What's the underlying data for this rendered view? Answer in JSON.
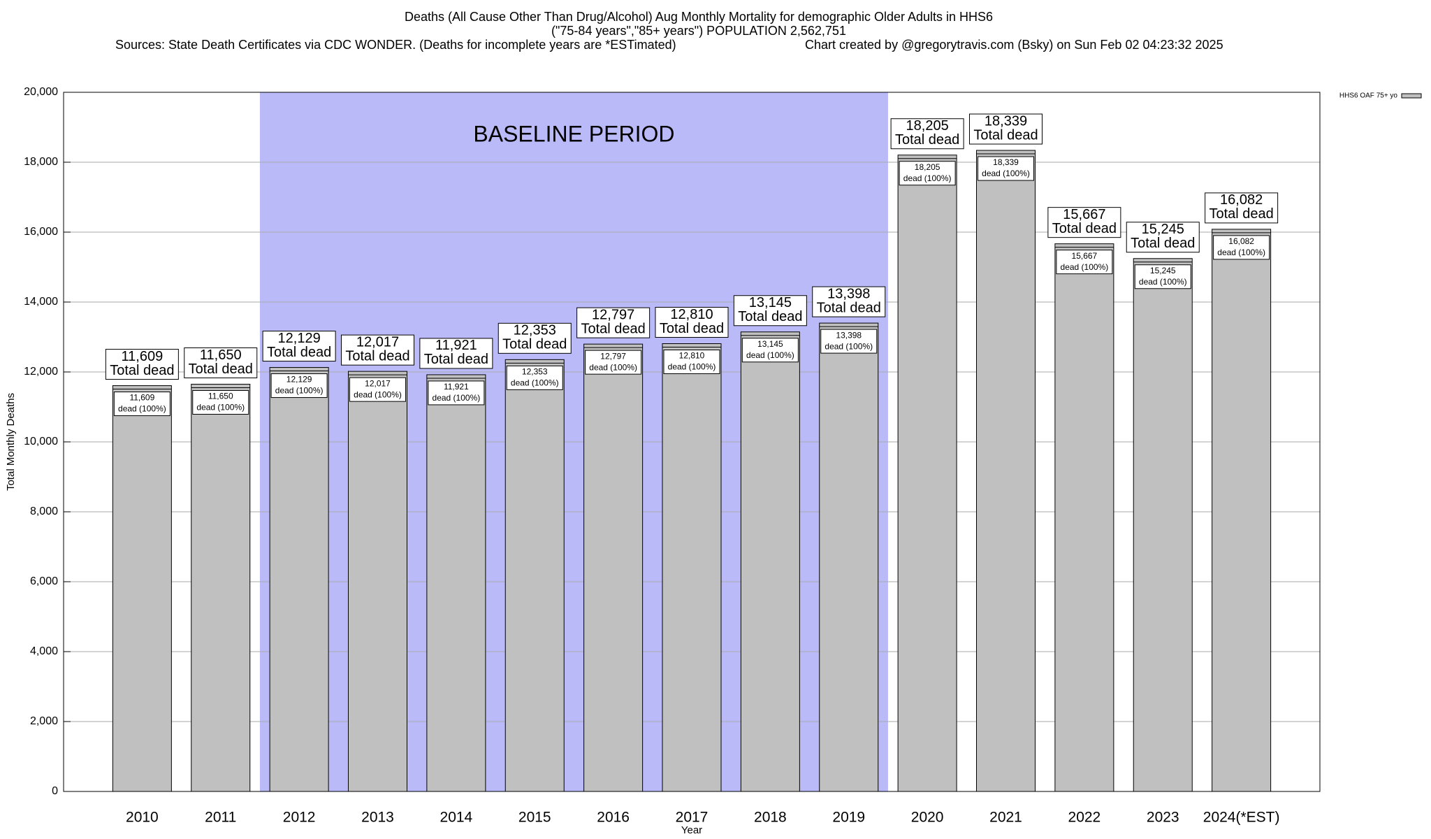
{
  "chart_data": {
    "type": "bar",
    "title": "Deaths (All Cause Other Than Drug/Alcohol) Aug Monthly Mortality for demographic Older Adults in HHS6",
    "subtitle": "(\"75-84 years\",\"85+ years\") POPULATION 2,562,751",
    "source": "Sources: State Death Certificates via CDC WONDER. (Deaths for incomplete years are *ESTimated)",
    "credit": "Chart created by @gregorytravis.com (Bsky) on Sun Feb 02 04:23:32 2025",
    "x_label": "Year",
    "y_label": "Total Monthly Deaths",
    "categories": [
      "2010",
      "2011",
      "2012",
      "2013",
      "2014",
      "2015",
      "2016",
      "2017",
      "2018",
      "2019",
      "2020",
      "2021",
      "2022",
      "2023",
      "2024(*EST)"
    ],
    "series": [
      {
        "name": "HHS6 OAF 75+ yo",
        "color": "#c0c0c0",
        "values": [
          11609,
          11650,
          12129,
          12017,
          11921,
          12353,
          12797,
          12810,
          13145,
          13398,
          18205,
          18339,
          15667,
          15245,
          16082
        ],
        "value_labels": [
          "11,609",
          "11,650",
          "12,129",
          "12,017",
          "11,921",
          "12,353",
          "12,797",
          "12,810",
          "13,145",
          "13,398",
          "18,205",
          "18,339",
          "15,667",
          "15,245",
          "16,082"
        ]
      }
    ],
    "outer_label_text": "Total dead",
    "inner_label_text": "dead (100%)",
    "baseline": {
      "label": "BASELINE PERIOD",
      "start": "2012",
      "end": "2019",
      "color": "#babaf9"
    },
    "ylim": [
      0,
      20000
    ],
    "yticks": [
      0,
      {
        "value": 2000,
        "label": "2,000"
      },
      {
        "value": 4000,
        "label": "4,000"
      },
      {
        "value": 6000,
        "label": "6,000"
      },
      {
        "value": 8000,
        "label": "8,000"
      },
      {
        "value": 10000,
        "label": "10,000"
      },
      {
        "value": 12000,
        "label": "12,000"
      },
      {
        "value": 14000,
        "label": "14,000"
      },
      {
        "value": 16000,
        "label": "16,000"
      },
      {
        "value": 18000,
        "label": "18,000"
      },
      {
        "value": 20000,
        "label": "20,000"
      }
    ],
    "grid": true,
    "legend": "top-right"
  }
}
